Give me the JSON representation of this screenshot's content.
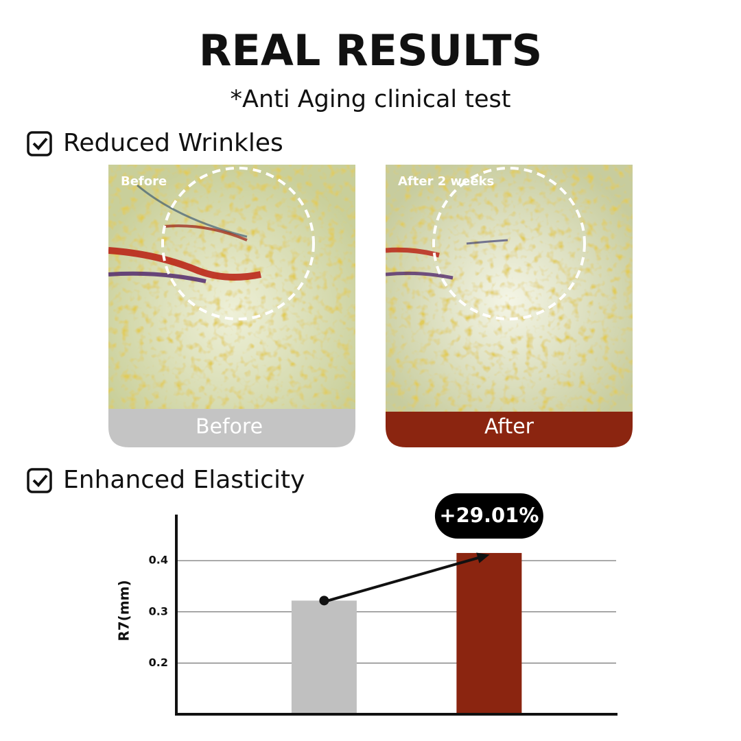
{
  "header": {
    "title": "REAL RESULTS",
    "subtitle": "*Anti Aging clinical test"
  },
  "sections": [
    {
      "label": "Reduced Wrinkles",
      "images": [
        {
          "overlay": "Before",
          "caption": "Before"
        },
        {
          "overlay": "After 2 weeks",
          "caption": "After"
        }
      ]
    },
    {
      "label": "Enhanced Elasticity"
    }
  ],
  "chart_data": {
    "type": "bar",
    "y_label": "R7(mm)",
    "categories": [
      null,
      null
    ],
    "values": [
      0.322,
      0.415
    ],
    "colors": [
      "#c0c0c0",
      "#8b2510"
    ],
    "ylim": [
      0.1,
      0.49
    ],
    "yticks": [
      0.2,
      0.3,
      0.4
    ],
    "grid": true,
    "annotation": "+29.01%"
  }
}
